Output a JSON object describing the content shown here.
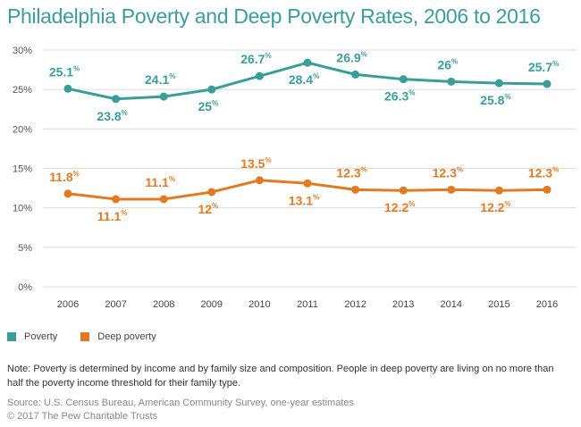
{
  "title": "Philadelphia Poverty and Deep Poverty Rates, 2006 to 2016",
  "chart_data": {
    "type": "line",
    "title": "Philadelphia Poverty and Deep Poverty Rates, 2006 to 2016",
    "categories": [
      "2006",
      "2007",
      "2008",
      "2009",
      "2010",
      "2011",
      "2012",
      "2013",
      "2014",
      "2015",
      "2016"
    ],
    "y_ticks": [
      "0%",
      "5%",
      "10%",
      "15%",
      "20%",
      "25%",
      "30%"
    ],
    "ylim": [
      0,
      30
    ],
    "grid": true,
    "legend_position": "bottom-left",
    "series": [
      {
        "name": "Poverty",
        "color": "#3a9e98",
        "values": [
          25.1,
          23.8,
          24.1,
          25,
          26.7,
          28.4,
          26.9,
          26.3,
          26,
          25.8,
          25.7
        ],
        "labels": [
          "25.1",
          "23.8",
          "24.1",
          "25",
          "26.7",
          "28.4",
          "26.9",
          "26.3",
          "26",
          "25.8",
          "25.7"
        ]
      },
      {
        "name": "Deep poverty",
        "color": "#e07b24",
        "values": [
          11.8,
          11.1,
          11.1,
          12,
          13.5,
          13.1,
          12.3,
          12.2,
          12.3,
          12.2,
          12.3
        ],
        "labels": [
          "11.8",
          "11.1",
          "11.1",
          "12",
          "13.5",
          "13.1",
          "12.3",
          "12.2",
          "12.3",
          "12.2",
          "12.3"
        ]
      }
    ],
    "label_suffix": "%"
  },
  "note": "Note: Poverty is determined by income and by family size and composition. People in deep poverty are living on no more than half the poverty income threshold for their family type.",
  "source": "Source: U.S. Census Bureau, American Community Survey, one-year estimates",
  "copyright": "© 2017 The Pew Charitable Trusts"
}
